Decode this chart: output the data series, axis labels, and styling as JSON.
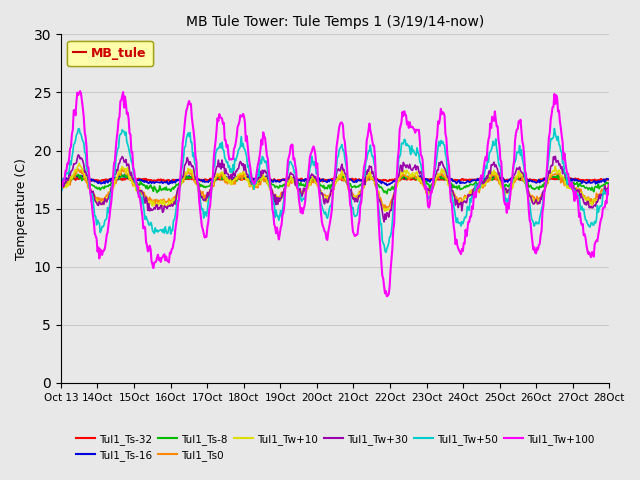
{
  "title": "MB Tule Tower: Tule Temps 1 (3/19/14-now)",
  "ylabel": "Temperature (C)",
  "legend_label": "MB_tule",
  "ylim": [
    0,
    30
  ],
  "yticks": [
    0,
    5,
    10,
    15,
    20,
    25,
    30
  ],
  "fig_bg_color": "#e8e8e8",
  "plot_bg_color": "#e8e8e8",
  "series": [
    {
      "name": "Tul1_Ts-32",
      "color": "#ff0000",
      "lw": 1.5
    },
    {
      "name": "Tul1_Ts-16",
      "color": "#0000dd",
      "lw": 1.2
    },
    {
      "name": "Tul1_Ts-8",
      "color": "#00bb00",
      "lw": 1.2
    },
    {
      "name": "Tul1_Ts0",
      "color": "#ff8800",
      "lw": 1.2
    },
    {
      "name": "Tul1_Tw+10",
      "color": "#dddd00",
      "lw": 1.2
    },
    {
      "name": "Tul1_Tw+30",
      "color": "#9900aa",
      "lw": 1.2
    },
    {
      "name": "Tul1_Tw+50",
      "color": "#00cccc",
      "lw": 1.2
    },
    {
      "name": "Tul1_Tw+100",
      "color": "#ff00ff",
      "lw": 1.5
    }
  ],
  "xtick_start": 13,
  "xtick_end": 28,
  "grid_color": "#cccccc",
  "legend_box_facecolor": "#ffffaa",
  "legend_box_edgecolor": "#999900",
  "legend_box_textcolor": "#cc0000"
}
